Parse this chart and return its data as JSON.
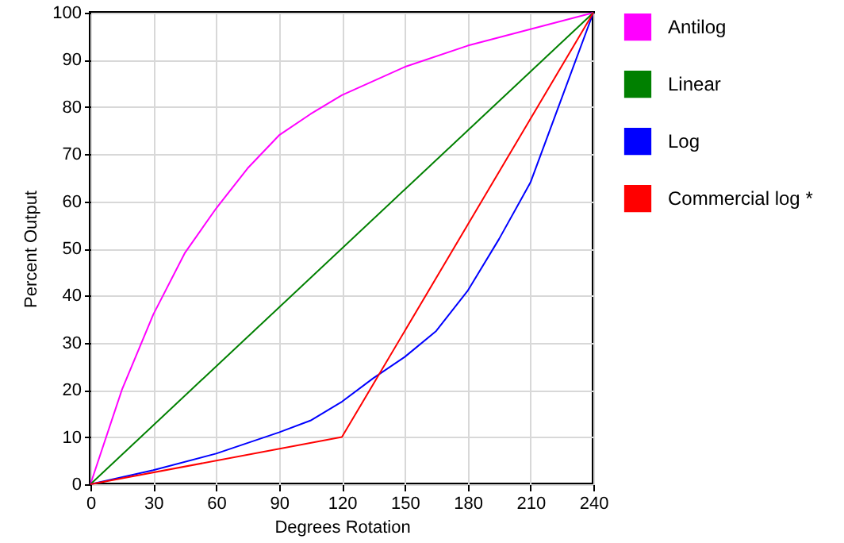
{
  "chart_data": {
    "type": "line",
    "xlabel": "Degrees Rotation",
    "ylabel": "Percent Output",
    "xlim": [
      0,
      240
    ],
    "xticks": [
      0,
      30,
      60,
      90,
      120,
      150,
      180,
      210,
      240
    ],
    "ylim": [
      0,
      100
    ],
    "yticks": [
      0,
      10,
      20,
      30,
      40,
      50,
      60,
      70,
      80,
      90,
      100
    ],
    "grid": true,
    "legend": "right",
    "marker": "none",
    "line_style": "solid",
    "series": [
      {
        "name": "Antilog",
        "color": "#ff00ff",
        "x": [
          0,
          15,
          30,
          45,
          60,
          75,
          90,
          105,
          120,
          150,
          180,
          210,
          240
        ],
        "values": [
          0,
          20,
          36,
          49,
          58.5,
          67,
          74,
          78.5,
          82.5,
          88.5,
          93,
          96.5,
          100
        ]
      },
      {
        "name": "Linear",
        "color": "#008000",
        "x": [
          0,
          240
        ],
        "values": [
          0,
          100
        ]
      },
      {
        "name": "Log",
        "color": "#0000ff",
        "x": [
          0,
          30,
          60,
          90,
          105,
          120,
          135,
          150,
          165,
          180,
          195,
          210,
          225,
          240
        ],
        "values": [
          0,
          3,
          6.5,
          11,
          13.5,
          17.5,
          22.5,
          27,
          32.5,
          41,
          52,
          64,
          82,
          100
        ]
      },
      {
        "name": "Commercial log *",
        "color": "#ff0000",
        "x": [
          0,
          120,
          240
        ],
        "values": [
          0,
          10,
          100
        ]
      }
    ]
  }
}
